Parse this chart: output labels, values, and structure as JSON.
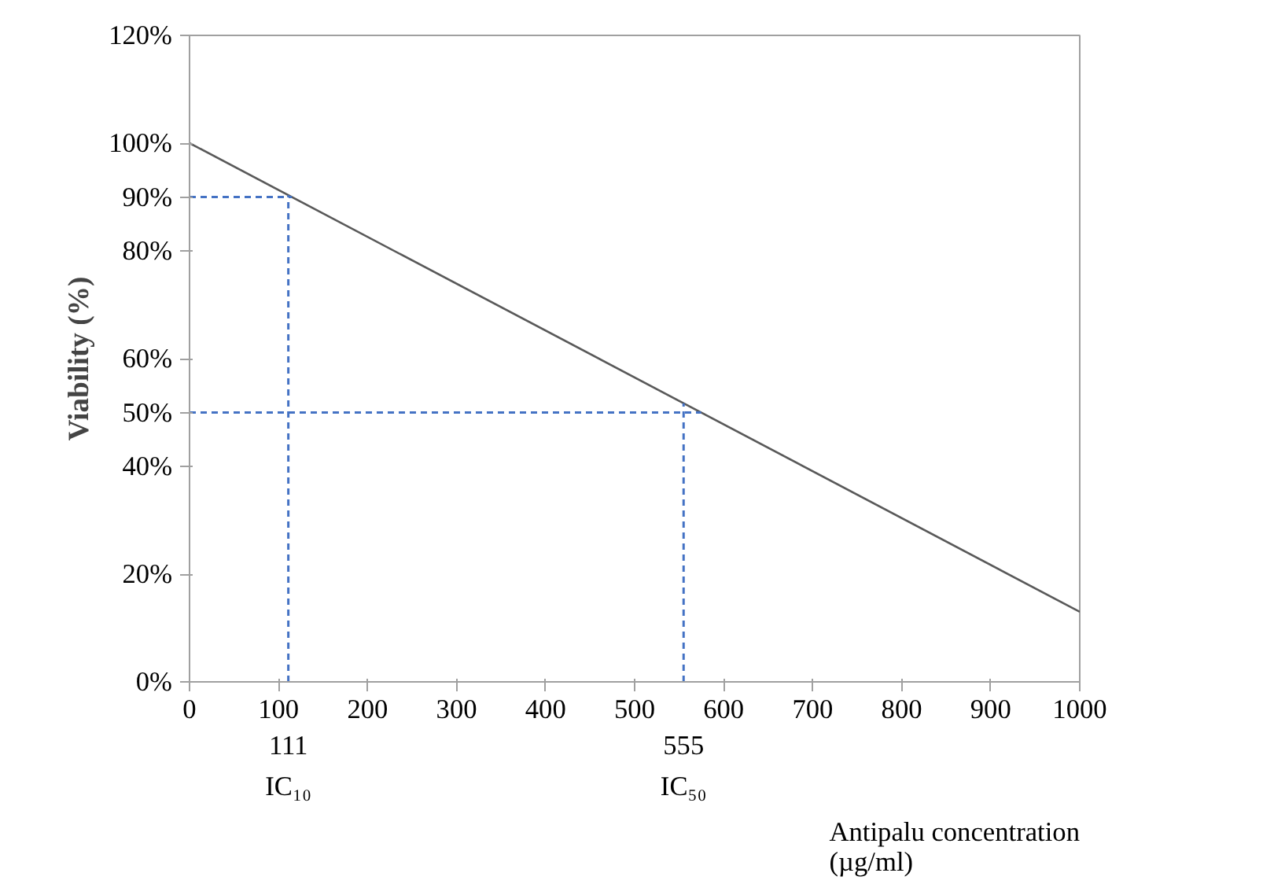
{
  "chart_data": {
    "type": "line",
    "ylabel": "Viability (%)",
    "xlabel": "Antipalu concentration\n(µg/ml)",
    "series": [
      {
        "x": [
          0,
          1000
        ],
        "values": [
          100,
          13
        ],
        "color": "#595959"
      }
    ],
    "xlim": [
      0,
      1000
    ],
    "xticks": [
      0,
      100,
      200,
      300,
      400,
      500,
      600,
      700,
      800,
      900,
      1000
    ],
    "ylim": [
      0,
      120
    ],
    "yticks": [
      {
        "value": 0,
        "label": "0%"
      },
      {
        "value": 20,
        "label": "20%"
      },
      {
        "value": 40,
        "label": "40%"
      },
      {
        "value": 50,
        "label": "50%"
      },
      {
        "value": 60,
        "label": "60%"
      },
      {
        "value": 80,
        "label": "80%"
      },
      {
        "value": 90,
        "label": "90%"
      },
      {
        "value": 100,
        "label": "100%"
      },
      {
        "value": 120,
        "label": "120%"
      }
    ],
    "ref_lines": [
      {
        "axis": "y",
        "value": 90,
        "color": "#4472c4",
        "line_style": "dashed"
      },
      {
        "axis": "y",
        "value": 50,
        "color": "#4472c4",
        "line_style": "dashed"
      },
      {
        "axis": "x",
        "value": 111,
        "label": "111",
        "color": "#4472c4",
        "line_style": "dashed"
      },
      {
        "axis": "x",
        "value": 555,
        "label": "555",
        "color": "#4472c4",
        "line_style": "dashed"
      }
    ],
    "annotations": [
      "IC₁₀",
      "IC₅₀"
    ],
    "grid": false,
    "marker": "none",
    "line_style": "solid"
  }
}
